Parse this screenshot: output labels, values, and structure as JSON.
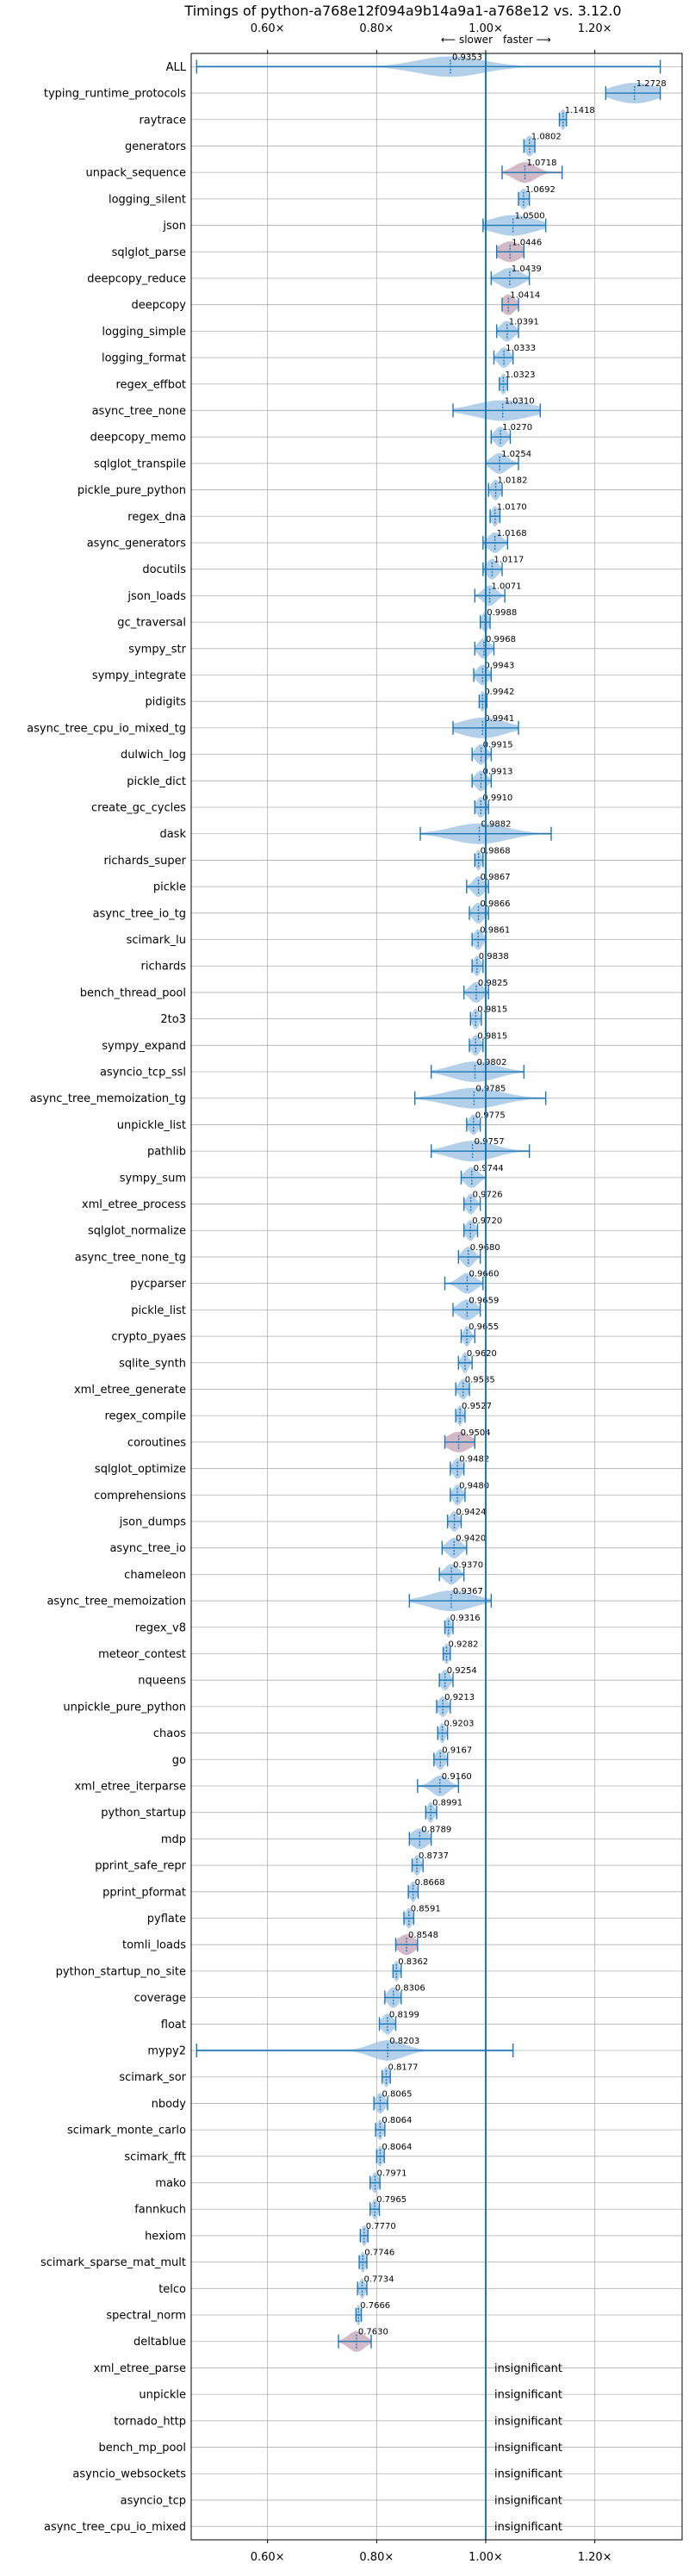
{
  "chart_data": {
    "type": "violin",
    "title": "Timings of python-a768e12f094a9b14a9a1-a768e12 vs. 3.12.0",
    "direction_labels": {
      "slower": "⟵ slower",
      "faster": "faster ⟶"
    },
    "xlim": [
      0.46,
      1.36
    ],
    "xticks": [
      0.6,
      0.8,
      1.0,
      1.2
    ],
    "xtick_labels": [
      "0.60×",
      "0.80×",
      "1.00×",
      "1.20×"
    ],
    "reference_line": 1.0,
    "grid": true,
    "insignificant_label": "insignificant",
    "colors": {
      "violin": "#a6c8e6",
      "bar": "#1f77b4",
      "outlier": "#f4a0a0",
      "grid": "#b0b0b0",
      "reference": "#1f77b4"
    },
    "benchmarks": [
      {
        "name": "ALL",
        "mean": 0.9353,
        "min": 0.47,
        "max": 1.32,
        "spread": 0.06,
        "fill": "violin"
      },
      {
        "name": "typing_runtime_protocols",
        "mean": 1.2728,
        "min": 1.22,
        "max": 1.32,
        "spread": 0.04,
        "fill": "violin"
      },
      {
        "name": "raytrace",
        "mean": 1.1418,
        "min": 1.135,
        "max": 1.148,
        "spread": 0.005,
        "fill": "violin"
      },
      {
        "name": "generators",
        "mean": 1.0802,
        "min": 1.07,
        "max": 1.09,
        "spread": 0.008,
        "fill": "violin"
      },
      {
        "name": "unpack_sequence",
        "mean": 1.0718,
        "min": 1.03,
        "max": 1.14,
        "spread": 0.02,
        "fill": "outlier"
      },
      {
        "name": "logging_silent",
        "mean": 1.0692,
        "min": 1.06,
        "max": 1.08,
        "spread": 0.008,
        "fill": "violin"
      },
      {
        "name": "json",
        "mean": 1.05,
        "min": 0.995,
        "max": 1.11,
        "spread": 0.04,
        "fill": "violin"
      },
      {
        "name": "sqlglot_parse",
        "mean": 1.0446,
        "min": 1.02,
        "max": 1.07,
        "spread": 0.02,
        "fill": "outlier"
      },
      {
        "name": "deepcopy_reduce",
        "mean": 1.0439,
        "min": 1.01,
        "max": 1.08,
        "spread": 0.02,
        "fill": "violin"
      },
      {
        "name": "deepcopy",
        "mean": 1.0414,
        "min": 1.03,
        "max": 1.06,
        "spread": 0.012,
        "fill": "outlier"
      },
      {
        "name": "logging_simple",
        "mean": 1.0391,
        "min": 1.02,
        "max": 1.06,
        "spread": 0.012,
        "fill": "violin"
      },
      {
        "name": "logging_format",
        "mean": 1.0333,
        "min": 1.015,
        "max": 1.05,
        "spread": 0.01,
        "fill": "violin"
      },
      {
        "name": "regex_effbot",
        "mean": 1.0323,
        "min": 1.025,
        "max": 1.04,
        "spread": 0.006,
        "fill": "violin"
      },
      {
        "name": "async_tree_none",
        "mean": 1.031,
        "min": 0.94,
        "max": 1.1,
        "spread": 0.05,
        "fill": "violin"
      },
      {
        "name": "deepcopy_memo",
        "mean": 1.027,
        "min": 1.01,
        "max": 1.045,
        "spread": 0.01,
        "fill": "violin"
      },
      {
        "name": "sqlglot_transpile",
        "mean": 1.0254,
        "min": 1.0,
        "max": 1.06,
        "spread": 0.015,
        "fill": "violin"
      },
      {
        "name": "pickle_pure_python",
        "mean": 1.0182,
        "min": 1.005,
        "max": 1.03,
        "spread": 0.008,
        "fill": "violin"
      },
      {
        "name": "regex_dna",
        "mean": 1.017,
        "min": 1.008,
        "max": 1.026,
        "spread": 0.006,
        "fill": "violin"
      },
      {
        "name": "async_generators",
        "mean": 1.0168,
        "min": 0.995,
        "max": 1.04,
        "spread": 0.012,
        "fill": "violin"
      },
      {
        "name": "docutils",
        "mean": 1.0117,
        "min": 0.995,
        "max": 1.03,
        "spread": 0.01,
        "fill": "violin"
      },
      {
        "name": "json_loads",
        "mean": 1.0071,
        "min": 0.98,
        "max": 1.035,
        "spread": 0.012,
        "fill": "violin"
      },
      {
        "name": "gc_traversal",
        "mean": 0.9988,
        "min": 0.99,
        "max": 1.008,
        "spread": 0.006,
        "fill": "violin"
      },
      {
        "name": "sympy_str",
        "mean": 0.9968,
        "min": 0.98,
        "max": 1.015,
        "spread": 0.01,
        "fill": "violin"
      },
      {
        "name": "sympy_integrate",
        "mean": 0.9943,
        "min": 0.978,
        "max": 1.01,
        "spread": 0.01,
        "fill": "violin"
      },
      {
        "name": "pidigits",
        "mean": 0.9942,
        "min": 0.988,
        "max": 1.002,
        "spread": 0.005,
        "fill": "violin"
      },
      {
        "name": "async_tree_cpu_io_mixed_tg",
        "mean": 0.9941,
        "min": 0.94,
        "max": 1.06,
        "spread": 0.04,
        "fill": "violin"
      },
      {
        "name": "dulwich_log",
        "mean": 0.9915,
        "min": 0.975,
        "max": 1.01,
        "spread": 0.01,
        "fill": "violin"
      },
      {
        "name": "pickle_dict",
        "mean": 0.9913,
        "min": 0.975,
        "max": 1.01,
        "spread": 0.01,
        "fill": "violin"
      },
      {
        "name": "create_gc_cycles",
        "mean": 0.991,
        "min": 0.98,
        "max": 1.005,
        "spread": 0.008,
        "fill": "violin"
      },
      {
        "name": "dask",
        "mean": 0.9882,
        "min": 0.88,
        "max": 1.12,
        "spread": 0.05,
        "fill": "violin"
      },
      {
        "name": "richards_super",
        "mean": 0.9868,
        "min": 0.98,
        "max": 0.995,
        "spread": 0.005,
        "fill": "violin"
      },
      {
        "name": "pickle",
        "mean": 0.9867,
        "min": 0.965,
        "max": 1.005,
        "spread": 0.01,
        "fill": "violin"
      },
      {
        "name": "async_tree_io_tg",
        "mean": 0.9866,
        "min": 0.97,
        "max": 1.005,
        "spread": 0.01,
        "fill": "violin"
      },
      {
        "name": "scimark_lu",
        "mean": 0.9861,
        "min": 0.975,
        "max": 1.0,
        "spread": 0.008,
        "fill": "violin"
      },
      {
        "name": "richards",
        "mean": 0.9838,
        "min": 0.975,
        "max": 0.995,
        "spread": 0.006,
        "fill": "violin"
      },
      {
        "name": "bench_thread_pool",
        "mean": 0.9825,
        "min": 0.96,
        "max": 1.005,
        "spread": 0.012,
        "fill": "violin"
      },
      {
        "name": "2to3",
        "mean": 0.9815,
        "min": 0.972,
        "max": 0.992,
        "spread": 0.006,
        "fill": "violin"
      },
      {
        "name": "sympy_expand",
        "mean": 0.9815,
        "min": 0.97,
        "max": 0.995,
        "spread": 0.008,
        "fill": "violin"
      },
      {
        "name": "asyncio_tcp_ssl",
        "mean": 0.9802,
        "min": 0.9,
        "max": 1.07,
        "spread": 0.04,
        "fill": "violin"
      },
      {
        "name": "async_tree_memoization_tg",
        "mean": 0.9785,
        "min": 0.87,
        "max": 1.11,
        "spread": 0.05,
        "fill": "violin"
      },
      {
        "name": "unpickle_list",
        "mean": 0.9775,
        "min": 0.965,
        "max": 0.99,
        "spread": 0.008,
        "fill": "violin"
      },
      {
        "name": "pathlib",
        "mean": 0.9757,
        "min": 0.9,
        "max": 1.08,
        "spread": 0.04,
        "fill": "violin"
      },
      {
        "name": "sympy_sum",
        "mean": 0.9744,
        "min": 0.955,
        "max": 1.0,
        "spread": 0.012,
        "fill": "violin"
      },
      {
        "name": "xml_etree_process",
        "mean": 0.9726,
        "min": 0.96,
        "max": 0.99,
        "spread": 0.008,
        "fill": "violin"
      },
      {
        "name": "sqlglot_normalize",
        "mean": 0.972,
        "min": 0.96,
        "max": 0.985,
        "spread": 0.008,
        "fill": "violin"
      },
      {
        "name": "async_tree_none_tg",
        "mean": 0.968,
        "min": 0.95,
        "max": 0.99,
        "spread": 0.01,
        "fill": "violin"
      },
      {
        "name": "pycparser",
        "mean": 0.966,
        "min": 0.925,
        "max": 0.995,
        "spread": 0.015,
        "fill": "violin"
      },
      {
        "name": "pickle_list",
        "mean": 0.9659,
        "min": 0.94,
        "max": 0.99,
        "spread": 0.015,
        "fill": "violin"
      },
      {
        "name": "crypto_pyaes",
        "mean": 0.9655,
        "min": 0.955,
        "max": 0.98,
        "spread": 0.006,
        "fill": "violin"
      },
      {
        "name": "sqlite_synth",
        "mean": 0.962,
        "min": 0.95,
        "max": 0.975,
        "spread": 0.006,
        "fill": "violin"
      },
      {
        "name": "xml_etree_generate",
        "mean": 0.9585,
        "min": 0.945,
        "max": 0.97,
        "spread": 0.008,
        "fill": "violin"
      },
      {
        "name": "regex_compile",
        "mean": 0.9527,
        "min": 0.945,
        "max": 0.962,
        "spread": 0.005,
        "fill": "violin"
      },
      {
        "name": "coroutines",
        "mean": 0.9504,
        "min": 0.925,
        "max": 0.98,
        "spread": 0.02,
        "fill": "outlier"
      },
      {
        "name": "sqlglot_optimize",
        "mean": 0.9482,
        "min": 0.935,
        "max": 0.96,
        "spread": 0.008,
        "fill": "violin"
      },
      {
        "name": "comprehensions",
        "mean": 0.948,
        "min": 0.935,
        "max": 0.962,
        "spread": 0.008,
        "fill": "violin"
      },
      {
        "name": "json_dumps",
        "mean": 0.9424,
        "min": 0.93,
        "max": 0.955,
        "spread": 0.008,
        "fill": "violin"
      },
      {
        "name": "async_tree_io",
        "mean": 0.942,
        "min": 0.92,
        "max": 0.965,
        "spread": 0.012,
        "fill": "violin"
      },
      {
        "name": "chameleon",
        "mean": 0.937,
        "min": 0.915,
        "max": 0.96,
        "spread": 0.012,
        "fill": "violin"
      },
      {
        "name": "async_tree_memoization",
        "mean": 0.9367,
        "min": 0.86,
        "max": 1.01,
        "spread": 0.04,
        "fill": "violin"
      },
      {
        "name": "regex_v8",
        "mean": 0.9316,
        "min": 0.925,
        "max": 0.94,
        "spread": 0.005,
        "fill": "violin"
      },
      {
        "name": "meteor_contest",
        "mean": 0.9282,
        "min": 0.922,
        "max": 0.935,
        "spread": 0.005,
        "fill": "violin"
      },
      {
        "name": "nqueens",
        "mean": 0.9254,
        "min": 0.915,
        "max": 0.94,
        "spread": 0.008,
        "fill": "violin"
      },
      {
        "name": "unpickle_pure_python",
        "mean": 0.9213,
        "min": 0.91,
        "max": 0.935,
        "spread": 0.008,
        "fill": "violin"
      },
      {
        "name": "chaos",
        "mean": 0.9203,
        "min": 0.912,
        "max": 0.93,
        "spread": 0.005,
        "fill": "violin"
      },
      {
        "name": "go",
        "mean": 0.9167,
        "min": 0.905,
        "max": 0.93,
        "spread": 0.008,
        "fill": "violin"
      },
      {
        "name": "xml_etree_iterparse",
        "mean": 0.916,
        "min": 0.875,
        "max": 0.95,
        "spread": 0.015,
        "fill": "violin"
      },
      {
        "name": "python_startup",
        "mean": 0.8991,
        "min": 0.89,
        "max": 0.91,
        "spread": 0.006,
        "fill": "violin"
      },
      {
        "name": "mdp",
        "mean": 0.8789,
        "min": 0.86,
        "max": 0.9,
        "spread": 0.015,
        "fill": "violin"
      },
      {
        "name": "pprint_safe_repr",
        "mean": 0.8737,
        "min": 0.865,
        "max": 0.885,
        "spread": 0.006,
        "fill": "violin"
      },
      {
        "name": "pprint_pformat",
        "mean": 0.8668,
        "min": 0.858,
        "max": 0.876,
        "spread": 0.006,
        "fill": "violin"
      },
      {
        "name": "pyflate",
        "mean": 0.8591,
        "min": 0.85,
        "max": 0.868,
        "spread": 0.006,
        "fill": "violin"
      },
      {
        "name": "tomli_loads",
        "mean": 0.8548,
        "min": 0.835,
        "max": 0.875,
        "spread": 0.015,
        "fill": "outlier"
      },
      {
        "name": "python_startup_no_site",
        "mean": 0.8362,
        "min": 0.83,
        "max": 0.845,
        "spread": 0.005,
        "fill": "violin"
      },
      {
        "name": "coverage",
        "mean": 0.8306,
        "min": 0.815,
        "max": 0.845,
        "spread": 0.01,
        "fill": "violin"
      },
      {
        "name": "float",
        "mean": 0.8199,
        "min": 0.805,
        "max": 0.835,
        "spread": 0.01,
        "fill": "violin"
      },
      {
        "name": "mypy2",
        "mean": 0.8203,
        "min": 0.47,
        "max": 1.05,
        "spread": 0.03,
        "fill": "violin"
      },
      {
        "name": "scimark_sor",
        "mean": 0.8177,
        "min": 0.81,
        "max": 0.825,
        "spread": 0.005,
        "fill": "violin"
      },
      {
        "name": "nbody",
        "mean": 0.8065,
        "min": 0.795,
        "max": 0.82,
        "spread": 0.008,
        "fill": "violin"
      },
      {
        "name": "scimark_monte_carlo",
        "mean": 0.8064,
        "min": 0.798,
        "max": 0.815,
        "spread": 0.005,
        "fill": "violin"
      },
      {
        "name": "scimark_fft",
        "mean": 0.8064,
        "min": 0.8,
        "max": 0.814,
        "spread": 0.005,
        "fill": "violin"
      },
      {
        "name": "mako",
        "mean": 0.7971,
        "min": 0.788,
        "max": 0.806,
        "spread": 0.006,
        "fill": "violin"
      },
      {
        "name": "fannkuch",
        "mean": 0.7965,
        "min": 0.788,
        "max": 0.805,
        "spread": 0.005,
        "fill": "violin"
      },
      {
        "name": "hexiom",
        "mean": 0.777,
        "min": 0.77,
        "max": 0.784,
        "spread": 0.005,
        "fill": "violin"
      },
      {
        "name": "scimark_sparse_mat_mult",
        "mean": 0.7746,
        "min": 0.768,
        "max": 0.782,
        "spread": 0.005,
        "fill": "violin"
      },
      {
        "name": "telco",
        "mean": 0.7734,
        "min": 0.765,
        "max": 0.782,
        "spread": 0.005,
        "fill": "violin"
      },
      {
        "name": "spectral_norm",
        "mean": 0.7666,
        "min": 0.762,
        "max": 0.772,
        "spread": 0.004,
        "fill": "violin"
      },
      {
        "name": "deltablue",
        "mean": 0.763,
        "min": 0.73,
        "max": 0.79,
        "spread": 0.015,
        "fill": "outlier"
      },
      {
        "name": "xml_etree_parse",
        "insignificant": true
      },
      {
        "name": "unpickle",
        "insignificant": true
      },
      {
        "name": "tornado_http",
        "insignificant": true
      },
      {
        "name": "bench_mp_pool",
        "insignificant": true
      },
      {
        "name": "asyncio_websockets",
        "insignificant": true
      },
      {
        "name": "asyncio_tcp",
        "insignificant": true
      },
      {
        "name": "async_tree_cpu_io_mixed",
        "insignificant": true
      }
    ]
  }
}
